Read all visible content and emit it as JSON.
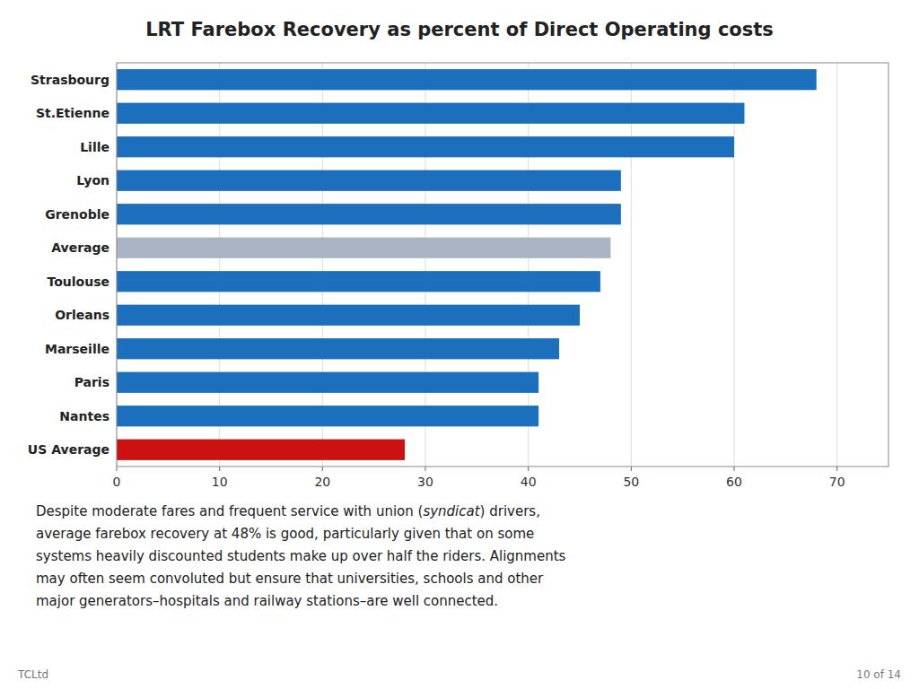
{
  "chart_data": {
    "type": "bar",
    "orientation": "horizontal",
    "title": "LRT Farebox Recovery as percent of Direct Operating costs",
    "categories": [
      "Strasbourg",
      "St.Etienne",
      "Lille",
      "Lyon",
      "Grenoble",
      "Average",
      "Toulouse",
      "Orleans",
      "Marseille",
      "Paris",
      "Nantes",
      "US Average"
    ],
    "values": [
      68,
      61,
      60,
      49,
      49,
      48,
      47,
      45,
      43,
      41,
      41,
      28
    ],
    "colors": [
      "#1b6fbd",
      "#1b6fbd",
      "#1b6fbd",
      "#1b6fbd",
      "#1b6fbd",
      "#aab4c4",
      "#1b6fbd",
      "#1b6fbd",
      "#1b6fbd",
      "#1b6fbd",
      "#1b6fbd",
      "#cc1111"
    ],
    "xlim": [
      0,
      75
    ],
    "xticks": [
      0,
      10,
      20,
      30,
      40,
      50,
      60,
      70
    ],
    "grid": true,
    "annotations": [
      [
        "Despite moderate fares and frequent service with union (",
        "syndicat",
        ") drivers,"
      ],
      "average farebox recovery at 48% is good, particularly given that on some",
      "systems heavily discounted students make up over half the riders. Alignments",
      "may often seem convoluted but ensure that universities, schools and other",
      "major generators–hospitals and railway stations–are well connected."
    ],
    "footer": [
      "TCLtd",
      "10 of 14"
    ]
  }
}
